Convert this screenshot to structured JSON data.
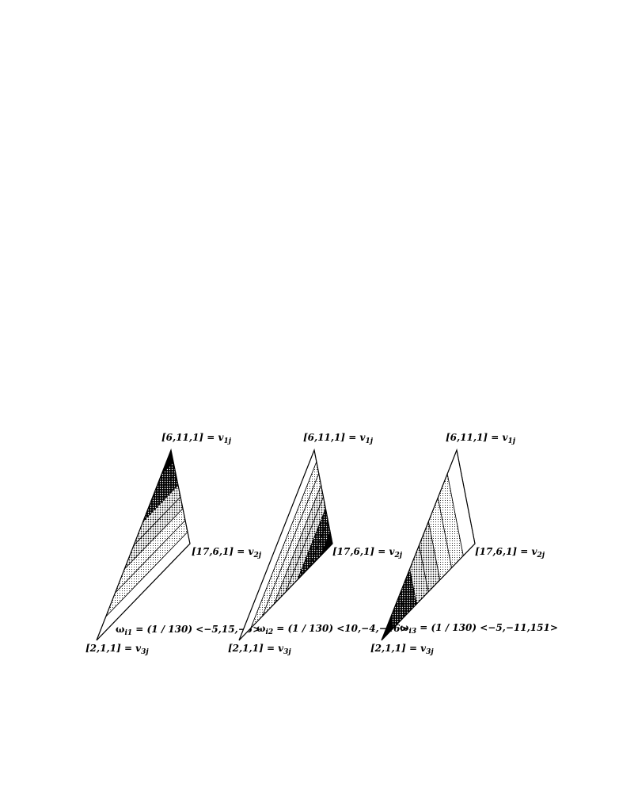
{
  "panels": [
    {
      "id": "panel-1",
      "v1_label": {
        "coords": "[6,11,1]",
        "eq": " = v",
        "sub": "1j"
      },
      "v2_label": {
        "coords": "[17,6,1]",
        "eq": " = v",
        "sub": "2j"
      },
      "v3_label": {
        "coords": "[2,1,1]",
        "eq": " = v",
        "sub": "3j"
      },
      "omega": {
        "symbol": "ω",
        "sub": "i1",
        "text": " = (1 / 130) <−5,15,−5>"
      },
      "shading": {
        "dark_vertex": "v1",
        "light_edge": "v2-v3"
      }
    },
    {
      "id": "panel-2",
      "v1_label": {
        "coords": "[6,11,1]",
        "eq": " = v",
        "sub": "1j"
      },
      "v2_label": {
        "coords": "[17,6,1]",
        "eq": " = v",
        "sub": "2j"
      },
      "v3_label": {
        "coords": "[2,1,1]",
        "eq": " = v",
        "sub": "3j"
      },
      "omega": {
        "symbol": "ω",
        "sub": "i2",
        "text": " = (1 / 130) <10,−4,−16>"
      },
      "shading": {
        "dark_vertex": "v2",
        "light_edge": "v1-v3"
      }
    },
    {
      "id": "panel-3",
      "v1_label": {
        "coords": "[6,11,1]",
        "eq": " = v",
        "sub": "1j"
      },
      "v2_label": {
        "coords": "[17,6,1]",
        "eq": " = v",
        "sub": "2j"
      },
      "v3_label": {
        "coords": "[2,1,1]",
        "eq": " = v",
        "sub": "3j"
      },
      "omega": {
        "symbol": "ω",
        "sub": "i3",
        "text": " = (1 / 130) <−5,−11,151>"
      },
      "shading": {
        "dark_vertex": "v3",
        "light_edge": "v1-v2"
      }
    }
  ]
}
